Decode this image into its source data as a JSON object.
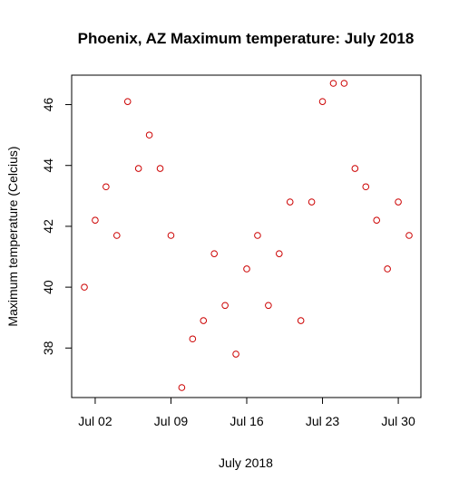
{
  "chart_data": {
    "type": "scatter",
    "title": "Phoenix, AZ Maximum temperature: July 2018",
    "xlabel": "July 2018",
    "ylabel": "Maximum temperature (Celcius)",
    "x": [
      "2018-07-01",
      "2018-07-02",
      "2018-07-03",
      "2018-07-04",
      "2018-07-05",
      "2018-07-06",
      "2018-07-07",
      "2018-07-08",
      "2018-07-09",
      "2018-07-10",
      "2018-07-11",
      "2018-07-12",
      "2018-07-13",
      "2018-07-14",
      "2018-07-15",
      "2018-07-16",
      "2018-07-17",
      "2018-07-18",
      "2018-07-19",
      "2018-07-20",
      "2018-07-21",
      "2018-07-22",
      "2018-07-23",
      "2018-07-24",
      "2018-07-25",
      "2018-07-26",
      "2018-07-27",
      "2018-07-28",
      "2018-07-29",
      "2018-07-30",
      "2018-07-31"
    ],
    "series": [
      {
        "values": [
          40.0,
          42.2,
          43.3,
          41.7,
          46.1,
          43.9,
          45.0,
          43.9,
          41.7,
          36.7,
          38.3,
          38.9,
          41.1,
          39.4,
          37.8,
          40.6,
          41.7,
          39.4,
          41.1,
          42.8,
          38.9,
          42.8,
          46.1,
          46.7,
          46.7,
          43.9,
          43.3,
          42.2,
          40.6,
          42.8,
          41.7
        ],
        "color": "#cc0000"
      }
    ],
    "x_ticks": [
      {
        "date": "2018-07-02",
        "label": "Jul 02"
      },
      {
        "date": "2018-07-09",
        "label": "Jul 09"
      },
      {
        "date": "2018-07-16",
        "label": "Jul 16"
      },
      {
        "date": "2018-07-23",
        "label": "Jul 23"
      },
      {
        "date": "2018-07-30",
        "label": "Jul 30"
      }
    ],
    "y_ticks": [
      38,
      40,
      42,
      44,
      46
    ],
    "xlim": [
      "2018-07-01",
      "2018-07-31"
    ],
    "ylim": [
      36.7,
      46.7
    ],
    "grid": false,
    "marker": "open-circle"
  }
}
